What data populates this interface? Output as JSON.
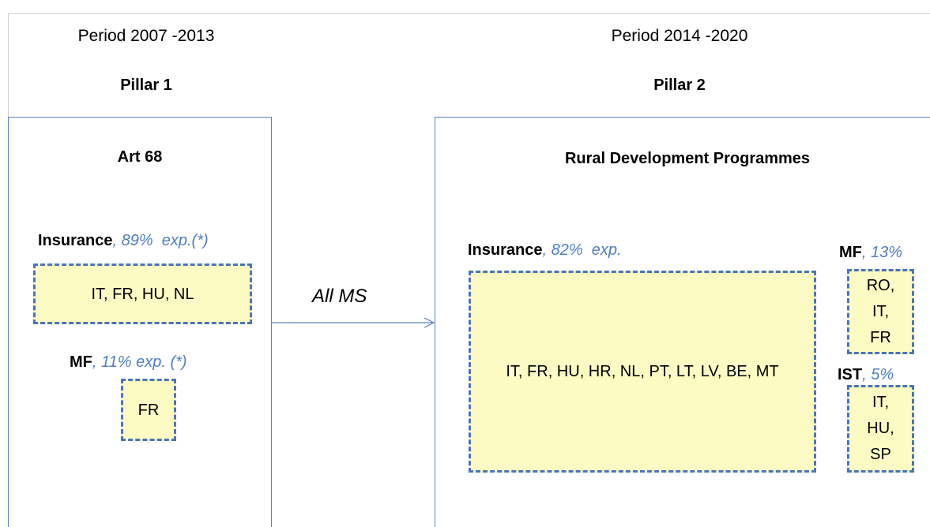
{
  "left": {
    "period": "Period 2007 -2013",
    "pillar": "Pillar 1",
    "box_title": "Art 68",
    "groups": [
      {
        "label": "Insurance",
        "note": ", 89%  exp.(*)",
        "members": "IT, FR, HU, NL"
      },
      {
        "label": "MF",
        "note": ", 11% exp. (*)",
        "members": "FR"
      }
    ]
  },
  "arrow_label": "All MS",
  "right": {
    "period": "Period 2014 -2020",
    "pillar": "Pillar 2",
    "box_title": "Rural Development Programmes",
    "groups": [
      {
        "label": "Insurance",
        "note": ", 82%  exp.",
        "members": "IT, FR, HU, HR, NL, PT, LT, LV, BE, MT"
      },
      {
        "label": "MF",
        "note": ", 13%",
        "members": "RO, IT, FR"
      },
      {
        "label": "IST",
        "note": ", 5%",
        "members": "IT, HU, SP"
      }
    ]
  }
}
